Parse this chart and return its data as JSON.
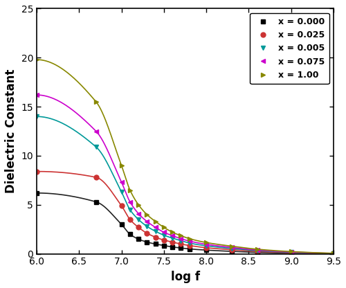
{
  "xlabel": "log f",
  "ylabel": "Dielectric Constant",
  "xlim": [
    6.0,
    9.5
  ],
  "ylim": [
    0,
    25
  ],
  "yticks": [
    0,
    5,
    10,
    15,
    20,
    25
  ],
  "xticks": [
    6.0,
    6.5,
    7.0,
    7.5,
    8.0,
    8.5,
    9.0,
    9.5
  ],
  "series": [
    {
      "label": "x = 0.000",
      "color": "#222222",
      "marker": "s",
      "marker_color": "black",
      "marker_x": [
        6.0,
        6.7,
        7.0,
        7.1,
        7.2,
        7.3,
        7.4,
        7.5,
        7.6,
        7.7,
        7.8,
        8.0,
        8.3,
        8.6,
        9.0,
        9.5
      ],
      "marker_y": [
        6.2,
        5.3,
        3.0,
        2.0,
        1.5,
        1.2,
        1.0,
        0.85,
        0.7,
        0.6,
        0.5,
        0.38,
        0.25,
        0.15,
        0.08,
        0.02
      ],
      "amp": 6.2,
      "x0": 7.35,
      "k": 2.2
    },
    {
      "label": "x = 0.025",
      "color": "#cc3333",
      "marker": "o",
      "marker_color": "#cc3333",
      "marker_x": [
        6.0,
        6.7,
        7.0,
        7.1,
        7.2,
        7.3,
        7.4,
        7.5,
        7.6,
        7.7,
        7.8,
        8.0,
        8.3,
        8.6,
        9.0,
        9.5
      ],
      "marker_y": [
        8.4,
        7.8,
        4.9,
        3.5,
        2.7,
        2.1,
        1.7,
        1.4,
        1.2,
        1.0,
        0.85,
        0.62,
        0.42,
        0.25,
        0.12,
        0.03
      ],
      "amp": 8.4,
      "x0": 7.45,
      "k": 2.1
    },
    {
      "label": "x = 0.005",
      "color": "#009999",
      "marker": "v",
      "marker_color": "#009999",
      "marker_x": [
        6.0,
        6.7,
        7.0,
        7.1,
        7.2,
        7.3,
        7.4,
        7.5,
        7.6,
        7.7,
        7.8,
        8.0,
        8.3,
        8.6,
        9.0,
        9.5
      ],
      "marker_y": [
        14.0,
        10.9,
        6.3,
        4.5,
        3.5,
        2.8,
        2.3,
        1.9,
        1.6,
        1.35,
        1.1,
        0.82,
        0.55,
        0.33,
        0.16,
        0.04
      ],
      "amp": 14.0,
      "x0": 7.55,
      "k": 2.0
    },
    {
      "label": "x = 0.075",
      "color": "#cc00cc",
      "marker": "<",
      "marker_color": "#cc00cc",
      "marker_x": [
        6.0,
        6.7,
        7.0,
        7.1,
        7.2,
        7.3,
        7.4,
        7.5,
        7.6,
        7.7,
        7.8,
        8.0,
        8.3,
        8.6,
        9.0,
        9.5
      ],
      "marker_y": [
        16.2,
        12.5,
        7.3,
        5.3,
        4.1,
        3.3,
        2.7,
        2.2,
        1.85,
        1.55,
        1.3,
        0.97,
        0.65,
        0.39,
        0.19,
        0.05
      ],
      "amp": 16.2,
      "x0": 7.6,
      "k": 2.0
    },
    {
      "label": "x = 1.00",
      "color": "#888800",
      "marker": ">",
      "marker_color": "#888800",
      "marker_x": [
        6.0,
        6.7,
        7.0,
        7.1,
        7.2,
        7.3,
        7.4,
        7.5,
        7.6,
        7.7,
        7.8,
        8.0,
        8.3,
        8.6,
        9.0,
        9.5
      ],
      "marker_y": [
        19.8,
        15.5,
        9.0,
        6.5,
        5.0,
        4.0,
        3.3,
        2.7,
        2.2,
        1.85,
        1.55,
        1.15,
        0.78,
        0.47,
        0.23,
        0.06
      ],
      "amp": 19.8,
      "x0": 7.65,
      "k": 1.95
    }
  ],
  "legend_loc": "upper right",
  "legend_fontsize": 9,
  "axis_fontsize": 12,
  "tick_fontsize": 10,
  "linewidth": 1.2,
  "markersize": 5,
  "background_color": "#ffffff"
}
